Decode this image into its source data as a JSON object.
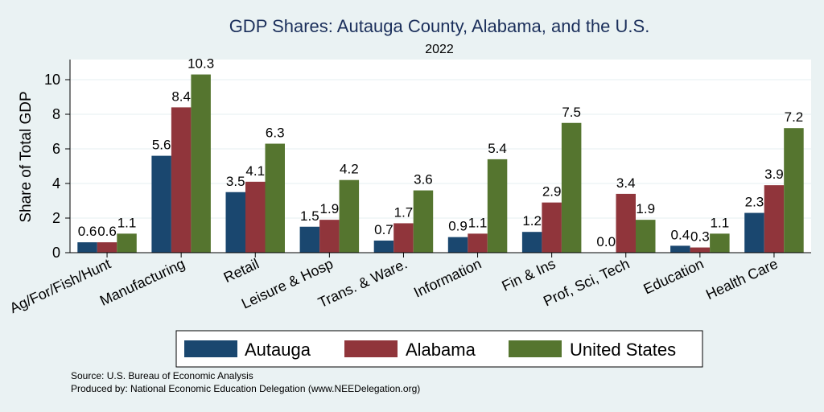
{
  "chart_data": {
    "type": "bar",
    "title": "GDP Shares: Autauga County, Alabama, and the U.S.",
    "subtitle": "2022",
    "ylabel": "Share of Total GDP",
    "xlabel": "",
    "ylim": [
      0,
      11
    ],
    "yticks": [
      0,
      2,
      4,
      6,
      8,
      10
    ],
    "grid": true,
    "legend_position": "bottom",
    "categories": [
      "Ag/For/Fish/Hunt",
      "Manufacturing",
      "Retail",
      "Leisure & Hosp",
      "Trans. & Ware.",
      "Information",
      "Fin & Ins",
      "Prof, Sci, Tech",
      "Education",
      "Health Care"
    ],
    "series": [
      {
        "name": "Autauga",
        "color": "#1a476f",
        "values": [
          0.6,
          5.6,
          3.5,
          1.5,
          0.7,
          0.9,
          1.2,
          0.0,
          0.4,
          2.3
        ]
      },
      {
        "name": "Alabama",
        "color": "#90353b",
        "values": [
          0.6,
          8.4,
          4.1,
          1.9,
          1.7,
          1.1,
          2.9,
          3.4,
          0.3,
          3.9
        ]
      },
      {
        "name": "United States",
        "color": "#55752f",
        "values": [
          1.1,
          10.3,
          6.3,
          4.2,
          3.6,
          5.4,
          7.5,
          1.9,
          1.1,
          7.2
        ]
      }
    ],
    "data_labels": [
      [
        "0.6",
        "5.6",
        "3.5",
        "1.5",
        "0.7",
        "0.9",
        "1.2",
        "0.0",
        "0.4",
        "2.3"
      ],
      [
        "0.6",
        "8.4",
        "4.1",
        "1.9",
        "1.7",
        "1.1",
        "2.9",
        "3.4",
        "0.3",
        "3.9"
      ],
      [
        "1.1",
        "10.3",
        "6.3",
        "4.2",
        "3.6",
        "5.4",
        "7.5",
        "1.9",
        "1.1",
        "7.2"
      ]
    ]
  },
  "source_line": "Source: U.S. Bureau of Economic Analysis",
  "produced_line": "Produced by: National Economic Education Delegation (www.NEEDelegation.org)",
  "colors": {
    "background": "#eaf2f3",
    "plot_background": "#ffffff",
    "title": "#1b2f5b"
  }
}
